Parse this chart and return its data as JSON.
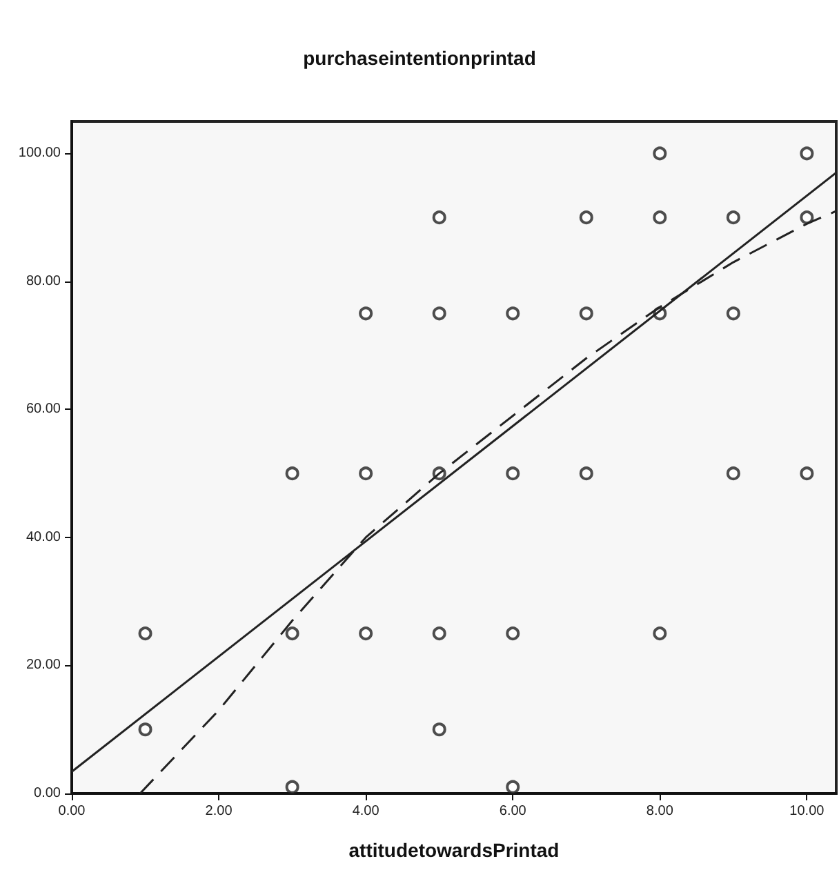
{
  "chart_data": {
    "type": "scatter",
    "title": "purchaseintentionprintad",
    "xlabel": "attitudetowardsPrintad",
    "xlim": [
      0,
      10.4
    ],
    "xticks": [
      {
        "value": 0,
        "label": "0.00"
      },
      {
        "value": 2,
        "label": "2.00"
      },
      {
        "value": 4,
        "label": "4.00"
      },
      {
        "value": 6,
        "label": "6.00"
      },
      {
        "value": 8,
        "label": "8.00"
      },
      {
        "value": 10,
        "label": "10.00"
      }
    ],
    "ylim": [
      0,
      105
    ],
    "yticks": [
      {
        "value": 0,
        "label": "0.00"
      },
      {
        "value": 20,
        "label": "20.00"
      },
      {
        "value": 40,
        "label": "40.00"
      },
      {
        "value": 60,
        "label": "60.00"
      },
      {
        "value": 80,
        "label": "80.00"
      },
      {
        "value": 100,
        "label": "100.00"
      }
    ],
    "grid": false,
    "marker": "circle",
    "series": [
      {
        "color": "#222222",
        "x": [
          1,
          1,
          3,
          3,
          3,
          4,
          4,
          4,
          5,
          5,
          5,
          5,
          5,
          6,
          6,
          6,
          6,
          7,
          7,
          7,
          8,
          8,
          8,
          8,
          9,
          9,
          9,
          10,
          10,
          10
        ],
        "values": [
          25,
          10,
          50,
          25,
          1,
          75,
          50,
          25,
          90,
          75,
          50,
          25,
          10,
          75,
          50,
          25,
          1,
          90,
          75,
          50,
          100,
          90,
          75,
          25,
          90,
          75,
          50,
          100,
          90,
          50
        ]
      },
      {
        "type": "line",
        "color": "#222222",
        "line_style": "solid",
        "marker": "none",
        "x": [
          0,
          10.4
        ],
        "values": [
          3.4,
          97
        ]
      },
      {
        "type": "line",
        "color": "#222222",
        "line_style": "dashed",
        "marker": "none",
        "x": [
          0.93,
          2,
          3,
          4,
          5,
          6,
          7,
          8,
          9,
          10,
          10.4
        ],
        "values": [
          0,
          13,
          27,
          40,
          50,
          59,
          68,
          76,
          83,
          89,
          91
        ]
      }
    ]
  }
}
